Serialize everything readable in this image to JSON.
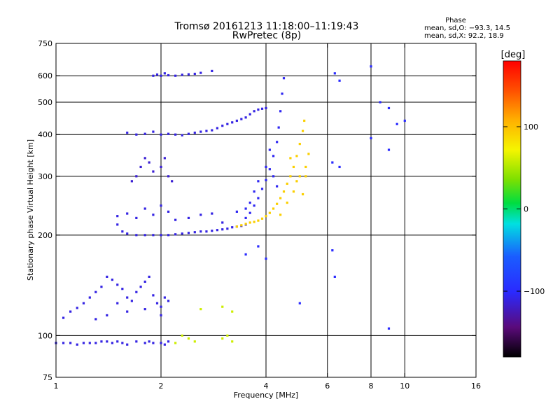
{
  "chart_data": {
    "type": "scatter",
    "title": "Tromsø 20161213 11:18:00–11:19:43",
    "subtitle": "RwPretec (8p)",
    "xlabel": "Frequency [MHz]",
    "ylabel": "Stationary phase Virtual Height [km]",
    "x_scale": "log",
    "y_scale": "log",
    "xlim": [
      1,
      16
    ],
    "ylim": [
      75,
      750
    ],
    "x_ticks": [
      1,
      2,
      4,
      6,
      8,
      10,
      16
    ],
    "y_ticks": [
      75,
      100,
      200,
      300,
      400,
      500,
      600,
      750
    ],
    "x_grid": [
      2,
      4,
      6,
      8,
      10
    ],
    "y_grid": [
      100,
      200,
      300,
      400,
      500,
      600
    ],
    "grid": true,
    "phase_info": {
      "title": "Phase",
      "line_o": "mean, sd,O: −93.3, 14.5",
      "line_x": "mean, sd,X:  92.2, 18.9"
    },
    "colorbar": {
      "label": "[deg]",
      "range": [
        -180,
        180
      ],
      "ticks": [
        100,
        0,
        -100
      ],
      "colormap": "rainbow (black → purple → blue → cyan → green → yellow → orange → red)"
    },
    "series": [
      {
        "trace": "E-layer trace ~95 km",
        "phase_deg": -110,
        "points": [
          [
            1.0,
            95
          ],
          [
            1.05,
            95
          ],
          [
            1.1,
            95
          ],
          [
            1.15,
            94
          ],
          [
            1.2,
            95
          ],
          [
            1.25,
            95
          ],
          [
            1.3,
            95
          ],
          [
            1.35,
            96
          ],
          [
            1.4,
            96
          ],
          [
            1.45,
            95
          ],
          [
            1.5,
            96
          ],
          [
            1.55,
            95
          ],
          [
            1.6,
            94
          ],
          [
            1.7,
            96
          ],
          [
            1.8,
            95
          ],
          [
            1.85,
            96
          ],
          [
            1.9,
            95
          ],
          [
            2.0,
            95
          ],
          [
            2.05,
            94
          ],
          [
            2.1,
            96
          ]
        ]
      },
      {
        "trace": "lower cloud 105–160 km",
        "phase_deg": -110,
        "points": [
          [
            1.05,
            113
          ],
          [
            1.1,
            118
          ],
          [
            1.15,
            121
          ],
          [
            1.2,
            125
          ],
          [
            1.25,
            130
          ],
          [
            1.3,
            135
          ],
          [
            1.35,
            140
          ],
          [
            1.4,
            150
          ],
          [
            1.45,
            147
          ],
          [
            1.5,
            142
          ],
          [
            1.55,
            138
          ],
          [
            1.6,
            130
          ],
          [
            1.65,
            127
          ],
          [
            1.7,
            135
          ],
          [
            1.75,
            140
          ],
          [
            1.8,
            145
          ],
          [
            1.85,
            150
          ],
          [
            1.9,
            132
          ],
          [
            1.95,
            125
          ],
          [
            2.0,
            122
          ],
          [
            2.05,
            130
          ],
          [
            2.1,
            127
          ],
          [
            1.3,
            112
          ],
          [
            1.4,
            115
          ],
          [
            1.5,
            125
          ],
          [
            1.6,
            118
          ],
          [
            1.8,
            120
          ],
          [
            2.0,
            115
          ]
        ]
      },
      {
        "trace": "F-layer lower trace ~200–240 km",
        "phase_deg": -110,
        "points": [
          [
            1.5,
            215
          ],
          [
            1.55,
            205
          ],
          [
            1.6,
            202
          ],
          [
            1.7,
            200
          ],
          [
            1.8,
            200
          ],
          [
            1.9,
            200
          ],
          [
            2.0,
            200
          ],
          [
            2.1,
            200
          ],
          [
            2.2,
            201
          ],
          [
            2.3,
            202
          ],
          [
            2.4,
            203
          ],
          [
            2.5,
            204
          ],
          [
            2.6,
            205
          ],
          [
            2.7,
            205
          ],
          [
            2.8,
            206
          ],
          [
            2.9,
            207
          ],
          [
            3.0,
            208
          ],
          [
            3.1,
            209
          ],
          [
            3.2,
            211
          ],
          [
            3.3,
            212
          ],
          [
            3.4,
            213
          ],
          [
            3.5,
            215
          ],
          [
            1.5,
            228
          ],
          [
            1.6,
            232
          ],
          [
            1.7,
            225
          ],
          [
            1.8,
            240
          ],
          [
            1.9,
            230
          ],
          [
            2.0,
            245
          ],
          [
            2.1,
            235
          ],
          [
            2.2,
            222
          ],
          [
            2.4,
            225
          ],
          [
            2.6,
            230
          ],
          [
            2.8,
            232
          ],
          [
            3.0,
            218
          ]
        ]
      },
      {
        "trace": "F-layer critical rise (O-mode)",
        "phase_deg": -105,
        "points": [
          [
            3.5,
            225
          ],
          [
            3.6,
            233
          ],
          [
            3.7,
            245
          ],
          [
            3.8,
            258
          ],
          [
            3.9,
            275
          ],
          [
            4.0,
            292
          ],
          [
            4.1,
            315
          ],
          [
            4.2,
            345
          ],
          [
            4.3,
            380
          ],
          [
            4.35,
            420
          ],
          [
            4.4,
            470
          ],
          [
            4.45,
            530
          ],
          [
            4.5,
            590
          ],
          [
            3.6,
            250
          ],
          [
            3.7,
            270
          ],
          [
            3.8,
            290
          ],
          [
            4.0,
            320
          ],
          [
            4.1,
            360
          ],
          [
            4.2,
            300
          ],
          [
            4.3,
            280
          ],
          [
            3.5,
            240
          ],
          [
            3.3,
            235
          ]
        ]
      },
      {
        "trace": "X-mode trace (yellow)",
        "phase_deg": 92,
        "points": [
          [
            3.3,
            212
          ],
          [
            3.4,
            214
          ],
          [
            3.5,
            216
          ],
          [
            3.6,
            218
          ],
          [
            3.7,
            219
          ],
          [
            3.8,
            221
          ],
          [
            3.9,
            224
          ],
          [
            4.0,
            228
          ],
          [
            4.1,
            233
          ],
          [
            4.2,
            240
          ],
          [
            4.3,
            248
          ],
          [
            4.4,
            258
          ],
          [
            4.5,
            270
          ],
          [
            4.6,
            285
          ],
          [
            4.7,
            300
          ],
          [
            4.8,
            320
          ],
          [
            4.9,
            345
          ],
          [
            5.0,
            375
          ],
          [
            5.1,
            410
          ],
          [
            5.15,
            440
          ],
          [
            4.6,
            250
          ],
          [
            4.8,
            270
          ],
          [
            5.0,
            300
          ],
          [
            5.2,
            320
          ],
          [
            5.3,
            350
          ],
          [
            4.4,
            230
          ],
          [
            4.9,
            290
          ],
          [
            5.1,
            265
          ],
          [
            5.2,
            300
          ],
          [
            4.7,
            340
          ]
        ]
      },
      {
        "trace": "~400 km echo band",
        "phase_deg": -110,
        "points": [
          [
            1.6,
            405
          ],
          [
            1.7,
            400
          ],
          [
            1.8,
            402
          ],
          [
            1.9,
            408
          ],
          [
            2.0,
            400
          ],
          [
            2.1,
            402
          ],
          [
            2.2,
            400
          ],
          [
            2.3,
            398
          ],
          [
            2.4,
            402
          ],
          [
            2.5,
            405
          ],
          [
            2.6,
            408
          ],
          [
            2.7,
            410
          ],
          [
            2.8,
            412
          ],
          [
            2.9,
            418
          ],
          [
            3.0,
            425
          ],
          [
            3.1,
            430
          ],
          [
            3.2,
            435
          ],
          [
            3.3,
            440
          ],
          [
            3.4,
            445
          ],
          [
            3.5,
            450
          ],
          [
            3.6,
            460
          ],
          [
            3.7,
            470
          ],
          [
            3.8,
            475
          ],
          [
            3.9,
            478
          ],
          [
            4.0,
            480
          ]
        ]
      },
      {
        "trace": "~600 km echo band",
        "phase_deg": -110,
        "points": [
          [
            1.9,
            600
          ],
          [
            1.95,
            605
          ],
          [
            2.0,
            600
          ],
          [
            2.05,
            610
          ],
          [
            2.1,
            602
          ],
          [
            2.2,
            600
          ],
          [
            2.3,
            604
          ],
          [
            2.4,
            606
          ],
          [
            2.5,
            608
          ],
          [
            2.6,
            612
          ],
          [
            2.8,
            620
          ]
        ]
      },
      {
        "trace": "upper F1 cloud 280–370 km",
        "phase_deg": -115,
        "points": [
          [
            1.65,
            290
          ],
          [
            1.7,
            300
          ],
          [
            1.75,
            320
          ],
          [
            1.8,
            340
          ],
          [
            1.85,
            330
          ],
          [
            1.9,
            310
          ],
          [
            2.0,
            320
          ],
          [
            2.05,
            340
          ],
          [
            2.1,
            300
          ],
          [
            2.15,
            290
          ]
        ]
      },
      {
        "trace": "sporadic echoes (green / yellow)",
        "phase_deg": 60,
        "points": [
          [
            2.2,
            95
          ],
          [
            2.3,
            100
          ],
          [
            2.4,
            98
          ],
          [
            2.5,
            96
          ],
          [
            3.0,
            98
          ],
          [
            3.1,
            100
          ],
          [
            3.2,
            96
          ],
          [
            2.6,
            120
          ],
          [
            3.0,
            122
          ],
          [
            3.2,
            118
          ]
        ]
      },
      {
        "trace": "scattered high-frequency echoes",
        "phase_deg": -100,
        "points": [
          [
            6.3,
            610
          ],
          [
            6.5,
            580
          ],
          [
            8.0,
            640
          ],
          [
            8.5,
            500
          ],
          [
            9.0,
            480
          ],
          [
            9.5,
            430
          ],
          [
            8.0,
            390
          ],
          [
            9.0,
            360
          ],
          [
            6.2,
            330
          ],
          [
            6.5,
            320
          ],
          [
            6.2,
            180
          ],
          [
            6.3,
            150
          ],
          [
            9.0,
            105
          ],
          [
            3.5,
            175
          ],
          [
            3.8,
            185
          ],
          [
            4.0,
            170
          ],
          [
            5.0,
            125
          ],
          [
            10.0,
            440
          ]
        ]
      }
    ]
  }
}
